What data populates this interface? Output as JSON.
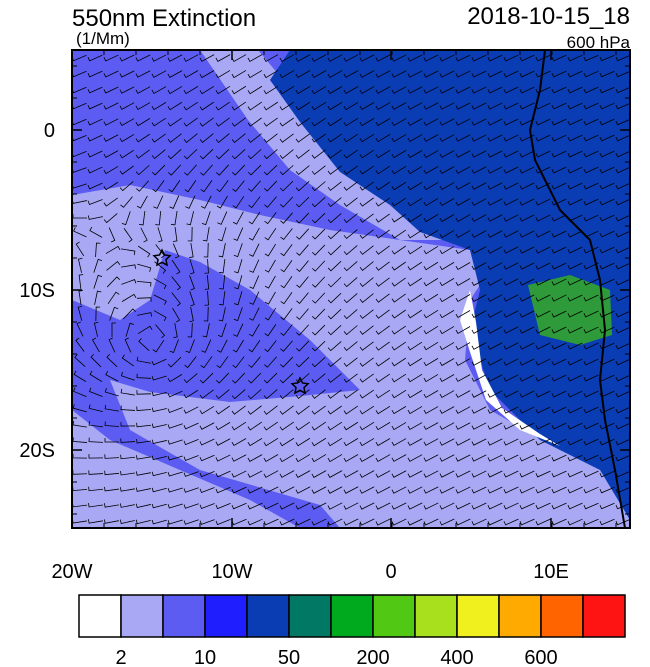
{
  "header": {
    "title": "550nm Extinction",
    "units": "(1/Mm)",
    "date": "2018-10-15_18",
    "level": "600 hPa"
  },
  "x_axis": {
    "labels": [
      "20W",
      "10W",
      "0",
      "10E"
    ]
  },
  "y_axis": {
    "labels": [
      "0",
      "10S",
      "20S"
    ]
  },
  "colorbar": {
    "labels": [
      "2",
      "10",
      "50",
      "200",
      "400",
      "600"
    ],
    "colors": [
      "#ffffff",
      "#a8a8f4",
      "#5c5cf2",
      "#1e1eff",
      "#0a3cb4",
      "#007864",
      "#00aa1e",
      "#50c814",
      "#a8e01e",
      "#f0f01e",
      "#ffaa00",
      "#ff6400",
      "#ff1414"
    ]
  }
}
